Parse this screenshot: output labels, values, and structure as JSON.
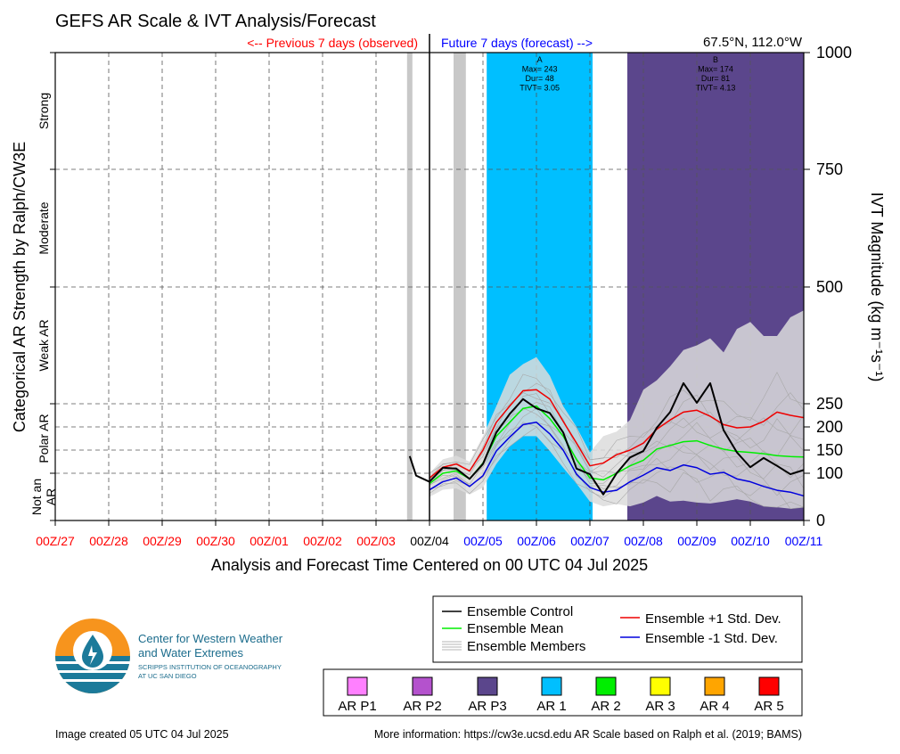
{
  "chart_data": {
    "type": "line",
    "title": "GEFS AR Scale & IVT Analysis/Forecast",
    "location": "67.5°N, 112.0°W",
    "previous_label": "<-- Previous 7 days (observed)",
    "future_label": "Future 7 days (forecast) -->",
    "xlabel": "Analysis and Forecast Time Centered on 00 UTC 04 Jul 2025",
    "ylabel_left": "Categorical AR Strength by Ralph/CW3E",
    "ylabel_right": "IVT Magnitude (kg m⁻¹s⁻¹)",
    "x_ticks": [
      "00Z/27",
      "00Z/28",
      "00Z/29",
      "00Z/30",
      "00Z/01",
      "00Z/02",
      "00Z/03",
      "00Z/04",
      "00Z/05",
      "00Z/06",
      "00Z/07",
      "00Z/08",
      "00Z/09",
      "00Z/10",
      "00Z/11"
    ],
    "y_ticks": [
      0,
      100,
      150,
      200,
      250,
      500,
      750,
      1000
    ],
    "categories": [
      {
        "label": "Not an AR",
        "lines": [
          "Not an",
          "AR"
        ],
        "from": 0,
        "to": 100
      },
      {
        "label": "Polar AR",
        "lines": [
          "Polar AR"
        ],
        "from": 100,
        "to": 250
      },
      {
        "label": "Weak AR",
        "lines": [
          "Weak AR"
        ],
        "from": 250,
        "to": 500
      },
      {
        "label": "Moderate",
        "lines": [
          "Moderate"
        ],
        "from": 500,
        "to": 750
      },
      {
        "label": "Strong",
        "lines": [
          "Strong"
        ],
        "from": 750,
        "to": 1000
      }
    ],
    "xlim_days": [
      0,
      14
    ],
    "ylim": [
      0,
      1000
    ],
    "gray_bands_days": [
      [
        6.58,
        6.68
      ],
      [
        7.45,
        7.68
      ]
    ],
    "ar_events": [
      {
        "label": "A",
        "max": "Max= 243",
        "dur": "Dur= 48",
        "tivt": "TIVT= 3.05",
        "start_day": 8.07,
        "end_day": 10.05,
        "color": "#00BFFF"
      },
      {
        "label": "B",
        "max": "Max= 174",
        "dur": "Dur= 81",
        "tivt": "TIVT= 4.13",
        "start_day": 10.7,
        "end_day": 14.0,
        "color": "#5B468C"
      }
    ],
    "series": [
      {
        "name": "Ensemble Control",
        "color": "#000000",
        "x": [
          6.63,
          6.75,
          7.0,
          7.25,
          7.5,
          7.75,
          8.0,
          8.25,
          8.5,
          8.75,
          9.0,
          9.25,
          9.5,
          9.75,
          10.0,
          10.25,
          10.5,
          10.75,
          11.0,
          11.25,
          11.5,
          11.75,
          12.0,
          12.25,
          12.5,
          12.75,
          13.0,
          13.25,
          13.5,
          13.75,
          14.0
        ],
        "y": [
          137,
          95,
          82,
          112,
          110,
          88,
          120,
          188,
          228,
          260,
          240,
          230,
          188,
          110,
          98,
          55,
          100,
          134,
          148,
          198,
          232,
          294,
          252,
          294,
          193,
          145,
          113,
          133,
          116,
          98,
          107
        ]
      },
      {
        "name": "Ensemble Mean",
        "color": "#00EE00",
        "x": [
          7.0,
          7.25,
          7.5,
          7.75,
          8.0,
          8.25,
          8.5,
          8.75,
          9.0,
          9.25,
          9.5,
          9.75,
          10.0,
          10.25,
          10.5,
          10.75,
          11.0,
          11.25,
          11.5,
          11.75,
          12.0,
          12.25,
          12.5,
          12.75,
          13.0,
          13.25,
          13.5,
          13.75,
          14.0
        ],
        "y": [
          78,
          100,
          105,
          88,
          122,
          180,
          210,
          240,
          245,
          218,
          180,
          130,
          90,
          86,
          100,
          116,
          128,
          152,
          160,
          168,
          170,
          160,
          152,
          147,
          145,
          142,
          138,
          136,
          135
        ]
      },
      {
        "name": "Ensemble +1 Std. Dev.",
        "color": "#EE0000",
        "x": [
          7.0,
          7.25,
          7.5,
          7.75,
          8.0,
          8.25,
          8.5,
          8.75,
          9.0,
          9.25,
          9.5,
          9.75,
          10.0,
          10.25,
          10.5,
          10.75,
          11.0,
          11.25,
          11.5,
          11.75,
          12.0,
          12.25,
          12.5,
          12.75,
          13.0,
          13.25,
          13.5,
          13.75,
          14.0
        ],
        "y": [
          90,
          113,
          120,
          105,
          150,
          210,
          245,
          278,
          280,
          260,
          212,
          165,
          116,
          122,
          140,
          150,
          165,
          195,
          215,
          232,
          236,
          223,
          205,
          198,
          200,
          212,
          232,
          225,
          220
        ]
      },
      {
        "name": "Ensemble -1 Std. Dev.",
        "color": "#0000DD",
        "x": [
          7.0,
          7.25,
          7.5,
          7.75,
          8.0,
          8.25,
          8.5,
          8.75,
          9.0,
          9.25,
          9.5,
          9.75,
          10.0,
          10.25,
          10.5,
          10.75,
          11.0,
          11.25,
          11.5,
          11.75,
          12.0,
          12.25,
          12.5,
          12.75,
          13.0,
          13.25,
          13.5,
          13.75,
          14.0
        ],
        "y": [
          65,
          82,
          90,
          72,
          95,
          148,
          178,
          205,
          210,
          185,
          150,
          98,
          70,
          60,
          64,
          82,
          96,
          112,
          106,
          118,
          112,
          98,
          102,
          88,
          82,
          72,
          64,
          60,
          52
        ]
      }
    ],
    "members_band": {
      "name": "Ensemble Members",
      "color": "#C8C8C8",
      "x": [
        7.0,
        7.25,
        7.5,
        7.75,
        8.0,
        8.25,
        8.5,
        8.75,
        9.0,
        9.25,
        9.5,
        9.75,
        10.0,
        10.25,
        10.5,
        10.75,
        11.0,
        11.25,
        11.5,
        11.75,
        12.0,
        12.25,
        12.5,
        12.75,
        13.0,
        13.25,
        13.5,
        13.75,
        14.0
      ],
      "upper": [
        100,
        130,
        138,
        125,
        180,
        245,
        312,
        335,
        350,
        310,
        245,
        200,
        145,
        180,
        190,
        215,
        280,
        300,
        330,
        365,
        375,
        390,
        360,
        410,
        425,
        395,
        395,
        435,
        450
      ],
      "lower": [
        50,
        65,
        68,
        55,
        70,
        120,
        158,
        180,
        180,
        148,
        112,
        78,
        40,
        30,
        35,
        30,
        38,
        52,
        40,
        42,
        38,
        36,
        40,
        45,
        40,
        30,
        28,
        25,
        28
      ]
    },
    "legend": {
      "entries": [
        {
          "label": "Ensemble Control",
          "color": "#000000"
        },
        {
          "label": "Ensemble Mean",
          "color": "#00EE00"
        },
        {
          "label": "Ensemble Members",
          "color": "#B4B4B4"
        },
        {
          "label": "Ensemble +1 Std. Dev.",
          "color": "#EE0000"
        },
        {
          "label": "Ensemble -1 Std. Dev.",
          "color": "#0000DD"
        }
      ]
    },
    "scale_legend": [
      {
        "label": "AR P1",
        "color": "#FF80FF"
      },
      {
        "label": "AR P2",
        "color": "#B452CD"
      },
      {
        "label": "AR P3",
        "color": "#5B468C"
      },
      {
        "label": "AR 1",
        "color": "#00BFFF"
      },
      {
        "label": "AR 2",
        "color": "#00EE00"
      },
      {
        "label": "AR 3",
        "color": "#FFFF00"
      },
      {
        "label": "AR 4",
        "color": "#FFA500"
      },
      {
        "label": "AR 5",
        "color": "#FF0000"
      }
    ]
  },
  "logo": {
    "line1": "Center for Western Weather",
    "line2": "and Water Extremes",
    "line3": "SCRIPPS INSTITUTION OF OCEANOGRAPHY",
    "line4": "AT UC SAN DIEGO"
  },
  "footer": {
    "created": "Image created 05 UTC 04 Jul 2025",
    "more_info": "More information: https://cw3e.ucsd.edu AR Scale based on Ralph et al. (2019; BAMS)"
  },
  "colors": {
    "observed_tick": "#FF0000",
    "forecast_tick": "#0000FF",
    "grid": "#555555",
    "logo_orange": "#F7941D",
    "logo_blue": "#1B7A9A",
    "logo_text": "#1B6C8C"
  }
}
